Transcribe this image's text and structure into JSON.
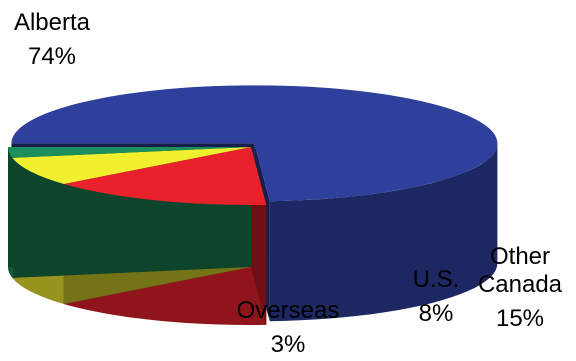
{
  "chart_data": {
    "type": "pie",
    "style": "3d-exploded",
    "slices": [
      {
        "label": "Alberta",
        "percent_label": "74%",
        "value": 74,
        "color": "#2e3f9c"
      },
      {
        "label": "Other Canada",
        "label_lines": [
          "Other",
          "Canada"
        ],
        "percent_label": "15%",
        "value": 15,
        "color": "#e8212b"
      },
      {
        "label": "U.S.",
        "percent_label": "8%",
        "value": 8,
        "color": "#f2ef2e"
      },
      {
        "label": "Overseas",
        "percent_label": "3%",
        "value": 3,
        "color": "#1c8f5c"
      }
    ]
  }
}
